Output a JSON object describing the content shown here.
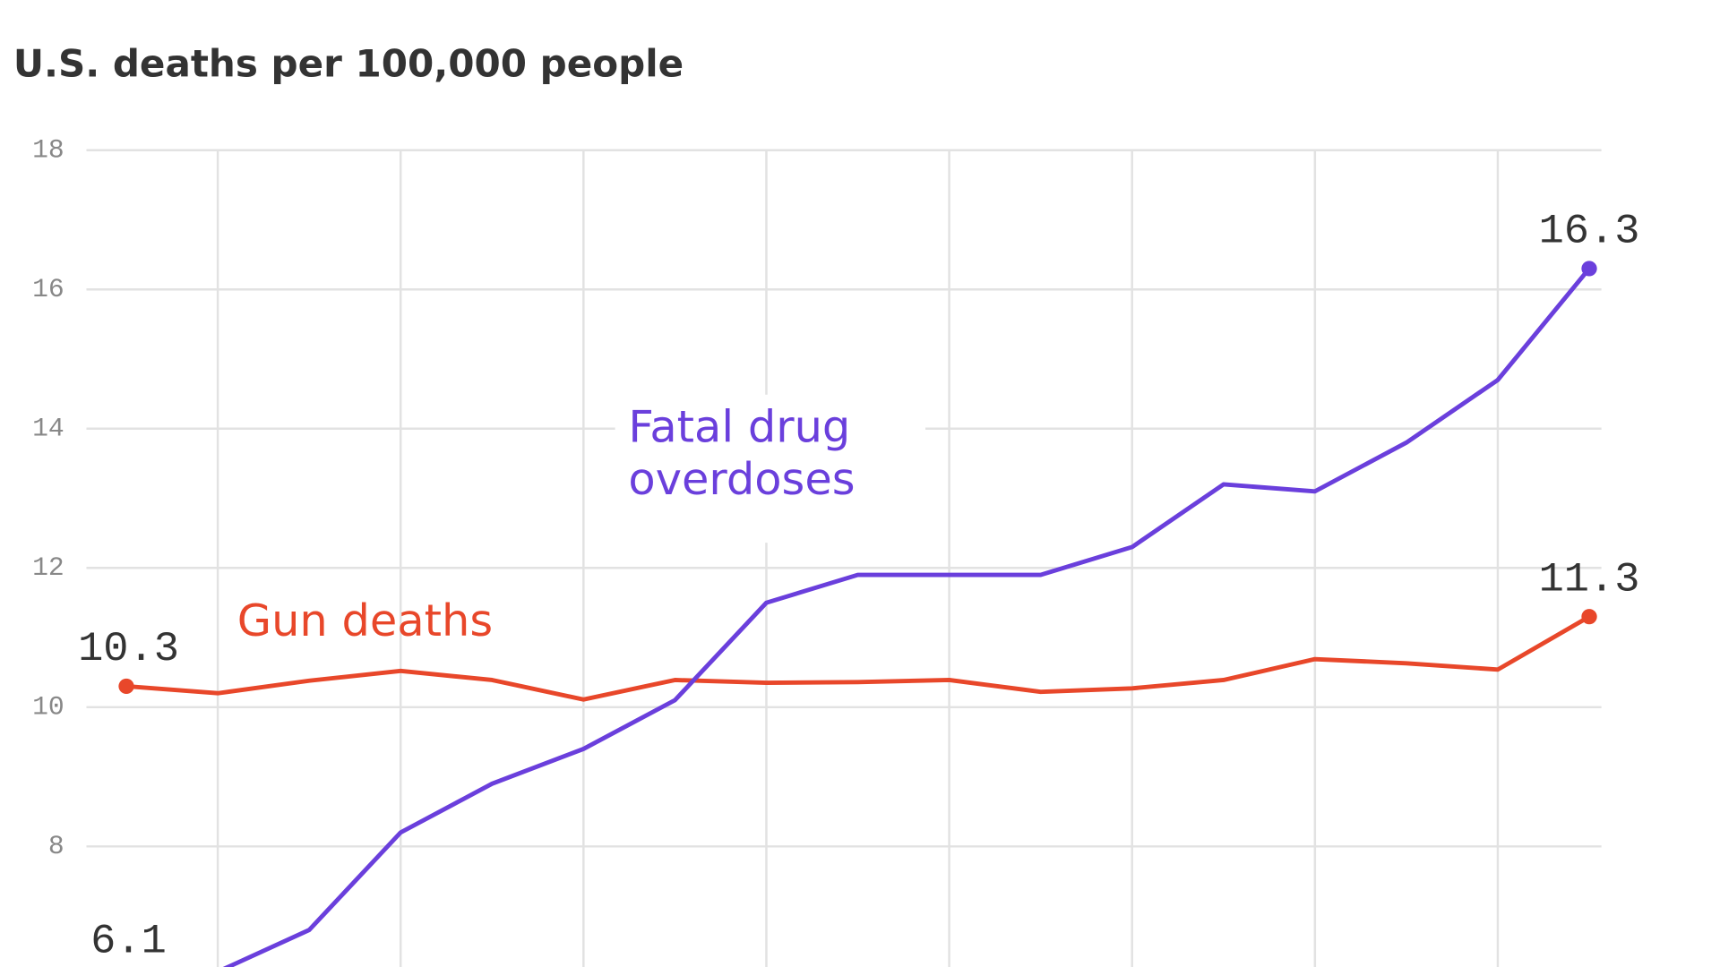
{
  "chart_data": {
    "type": "line",
    "title": "U.S. deaths per 100,000 people",
    "categories": [
      null,
      null,
      null,
      null,
      null,
      null,
      null,
      null,
      null,
      null,
      null,
      null,
      null,
      null,
      null,
      null,
      null
    ],
    "series": [
      {
        "name": "Gun deaths",
        "color": "#e8472a",
        "values": [
          10.3,
          10.2,
          10.38,
          10.52,
          10.39,
          10.11,
          10.39,
          10.35,
          10.36,
          10.39,
          10.22,
          10.27,
          10.39,
          10.69,
          10.63,
          10.54,
          11.3
        ]
      },
      {
        "name": "Fatal drug overdoses",
        "color": "#6a3fdc",
        "values": [
          6.1,
          6.2,
          6.8,
          8.2,
          8.9,
          9.4,
          10.1,
          11.5,
          11.9,
          11.9,
          11.9,
          12.3,
          13.2,
          13.1,
          13.8,
          14.7,
          16.3
        ]
      }
    ],
    "ylim": [
      6.27,
      18
    ],
    "yticks": [
      8,
      10,
      12,
      14,
      16,
      18
    ],
    "grid": true
  }
}
